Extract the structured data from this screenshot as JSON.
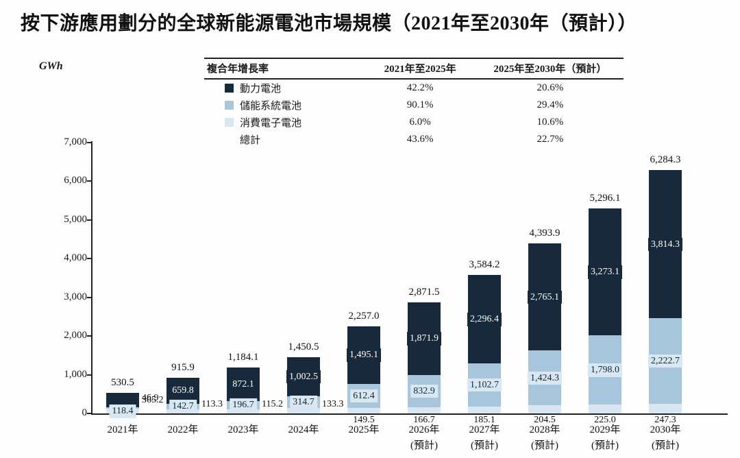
{
  "title": "按下游應用劃分的全球新能源電池市場規模（2021年至2030年（預計））",
  "unit_label": "GWh",
  "colors": {
    "power": "#17293A",
    "storage": "#A7C6DB",
    "consumer": "#D8E7F1",
    "axis": "#222222"
  },
  "legend_table": {
    "headers": [
      "複合年增長率",
      "2021年至2025年",
      "2025年至2030年（預計）"
    ],
    "rows": [
      {
        "label": "動力電池",
        "color": "#17293A",
        "cagr_2021_2025": "42.2%",
        "cagr_2025_2030": "20.6%"
      },
      {
        "label": "儲能系統電池",
        "color": "#A7C6DB",
        "cagr_2021_2025": "90.1%",
        "cagr_2025_2030": "29.4%"
      },
      {
        "label": "消費電子電池",
        "color": "#D8E7F1",
        "cagr_2021_2025": "6.0%",
        "cagr_2025_2030": "10.6%"
      },
      {
        "label": "總計",
        "color": null,
        "cagr_2021_2025": "43.6%",
        "cagr_2025_2030": "22.7%"
      }
    ]
  },
  "chart_data": {
    "type": "bar",
    "stacked": true,
    "title": "按下游應用劃分的全球新能源電池市場規模（2021年至2030年（預計））",
    "ylabel": "GWh",
    "ylim": [
      0,
      7000
    ],
    "ytick_interval": 1000,
    "grid": false,
    "legend_position": "top",
    "categories": [
      "2021年",
      "2022年",
      "2023年",
      "2024年",
      "2025年",
      "2026年",
      "2027年",
      "2028年",
      "2029年",
      "2030年"
    ],
    "forecast_suffix": "(預計)",
    "forecast_from_index": 5,
    "series": [
      {
        "name": "消費電子電池",
        "color": "#D8E7F1",
        "values": [
          118.4,
          113.3,
          115.2,
          133.3,
          149.5,
          166.7,
          185.1,
          204.5,
          225.0,
          247.3
        ]
      },
      {
        "name": "儲能系統電池",
        "color": "#A7C6DB",
        "values": [
          46.9,
          142.7,
          196.7,
          314.7,
          612.4,
          832.9,
          1102.7,
          1424.3,
          1798.0,
          2222.7
        ]
      },
      {
        "name": "動力電池",
        "color": "#17293A",
        "values": [
          365.2,
          659.8,
          872.1,
          1002.5,
          1495.1,
          1871.9,
          2296.4,
          2765.1,
          3273.1,
          3814.3
        ]
      }
    ],
    "totals": [
      530.5,
      915.9,
      1184.1,
      1450.5,
      2257.0,
      2871.5,
      3584.2,
      4393.9,
      5296.1,
      6284.3
    ]
  }
}
